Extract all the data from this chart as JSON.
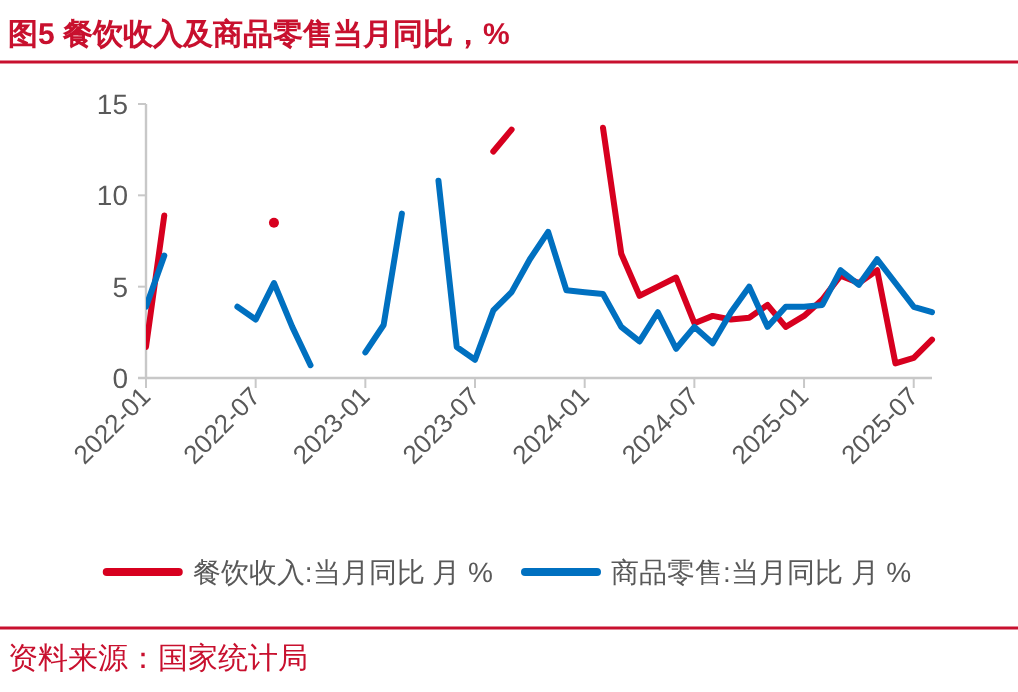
{
  "chart_data": {
    "type": "line",
    "title": "图5  餐饮收入及商品零售当月同比，%",
    "annotations": [
      "资料来源：国家统计局"
    ],
    "x": [
      "2022-01",
      "2022-02",
      "2022-03",
      "2022-04",
      "2022-05",
      "2022-06",
      "2022-07",
      "2022-08",
      "2022-09",
      "2022-10",
      "2022-11",
      "2022-12",
      "2023-01",
      "2023-02",
      "2023-03",
      "2023-04",
      "2023-05",
      "2023-06",
      "2023-07",
      "2023-08",
      "2023-09",
      "2023-10",
      "2023-11",
      "2023-12",
      "2024-01",
      "2024-02",
      "2024-03",
      "2024-04",
      "2024-05",
      "2024-06",
      "2024-07",
      "2024-08",
      "2024-09",
      "2024-10",
      "2024-11",
      "2024-12",
      "2025-01",
      "2025-02",
      "2025-03",
      "2025-04",
      "2025-05",
      "2025-06",
      "2025-07",
      "2025-08"
    ],
    "series": [
      {
        "name": "餐饮收入:当月同比 月 %",
        "color": "#d7001f",
        "values": [
          1.7,
          8.9,
          null,
          null,
          null,
          null,
          null,
          8.5,
          null,
          null,
          null,
          null,
          null,
          null,
          null,
          null,
          null,
          null,
          null,
          12.4,
          13.6,
          null,
          null,
          null,
          null,
          13.7,
          6.8,
          4.5,
          5.0,
          5.5,
          3.0,
          3.4,
          3.2,
          3.3,
          4.0,
          2.8,
          3.4,
          4.3,
          5.6,
          5.2,
          5.9,
          0.8,
          1.1,
          2.1
        ]
      },
      {
        "name": "商品零售:当月同比 月 %",
        "color": "#0070c0",
        "values": [
          3.9,
          6.7,
          null,
          null,
          null,
          3.9,
          3.2,
          5.2,
          2.8,
          0.7,
          null,
          null,
          1.4,
          2.9,
          9.0,
          null,
          10.8,
          1.7,
          1.0,
          3.7,
          4.7,
          6.5,
          8.0,
          4.8,
          4.7,
          4.6,
          2.8,
          2.0,
          3.6,
          1.6,
          2.8,
          1.9,
          3.6,
          5.0,
          2.8,
          3.9,
          3.9,
          4.0,
          5.9,
          5.1,
          6.5,
          5.2,
          3.9,
          3.6
        ]
      }
    ],
    "xlim": [
      "2022-01",
      "2025-08"
    ],
    "xticks": [
      "2022-01",
      "2022-07",
      "2023-01",
      "2023-07",
      "2024-01",
      "2024-07",
      "2025-01",
      "2025-07"
    ],
    "ylim": [
      0,
      15
    ],
    "yticks": [
      0,
      5,
      10,
      15
    ],
    "grid": false,
    "legend": "bottom"
  }
}
